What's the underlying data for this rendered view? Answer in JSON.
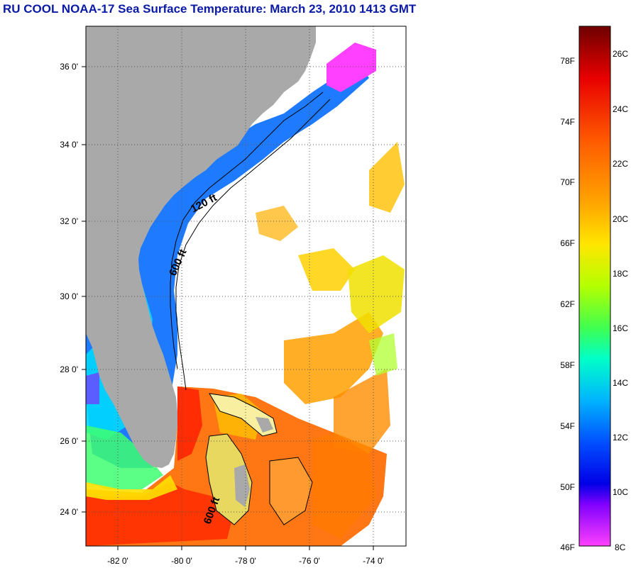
{
  "title": "RU COOL  NOAA-17  Sea Surface Temperature:  March 23, 2010 1413 GMT",
  "map": {
    "lon_ticks": [
      "-82 0'",
      "-80 0'",
      "-78 0'",
      "-76 0'",
      "-74 0'"
    ],
    "lat_ticks": [
      "36 0'",
      "34 0'",
      "32 0'",
      "30 0'",
      "28 0'",
      "26 0'",
      "24 0'"
    ],
    "contour_labels": [
      "120 ft",
      "600 ft",
      "600 ft"
    ],
    "colors": {
      "land": "#a9a9a9",
      "cloud_no_data": "#ffffff",
      "grid": "#555555"
    }
  },
  "colorbar": {
    "fahrenheit_labels": [
      "78F",
      "74F",
      "70F",
      "66F",
      "62F",
      "58F",
      "54F",
      "50F",
      "46F"
    ],
    "celsius_labels": [
      "26C",
      "24C",
      "22C",
      "20C",
      "18C",
      "16C",
      "14C",
      "12C",
      "10C",
      "8C"
    ],
    "colors": [
      "#7a0000",
      "#e80000",
      "#ff5000",
      "#ffa000",
      "#ffe000",
      "#c8ff00",
      "#40ff60",
      "#00ffd0",
      "#00b0ff",
      "#0050ff",
      "#0000e0",
      "#8000ff",
      "#ff40ff"
    ]
  }
}
